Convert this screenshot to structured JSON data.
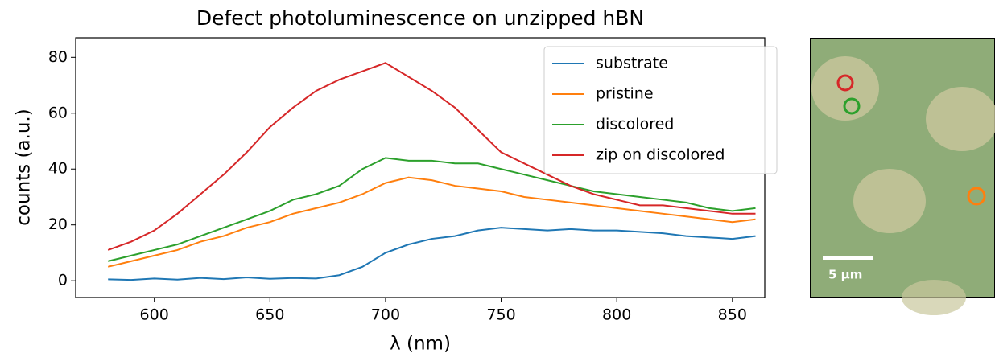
{
  "chart_data": {
    "type": "line",
    "title": "Defect photoluminescence on unzipped hBN",
    "x_label": "λ (nm)",
    "y_label": "counts (a.u.)",
    "x": [
      580,
      590,
      600,
      610,
      620,
      630,
      640,
      650,
      660,
      670,
      680,
      690,
      700,
      710,
      720,
      730,
      740,
      750,
      760,
      770,
      780,
      790,
      800,
      810,
      820,
      830,
      840,
      850,
      860
    ],
    "series": [
      {
        "name": "substrate",
        "color": "#1f77b4",
        "values": [
          0.5,
          0.3,
          0.8,
          0.4,
          1.0,
          0.6,
          1.2,
          0.7,
          1.0,
          0.8,
          2,
          5,
          10,
          13,
          15,
          16,
          18,
          19,
          18.5,
          18,
          18.5,
          18,
          18,
          17.5,
          17,
          16,
          15.5,
          15,
          16
        ]
      },
      {
        "name": "pristine",
        "color": "#ff7f0e",
        "values": [
          5,
          7,
          9,
          11,
          14,
          16,
          19,
          21,
          24,
          26,
          28,
          31,
          35,
          37,
          36,
          34,
          33,
          32,
          30,
          29,
          28,
          27,
          26,
          25,
          24,
          23,
          22,
          21,
          22
        ]
      },
      {
        "name": "discolored",
        "color": "#2ca02c",
        "values": [
          7,
          9,
          11,
          13,
          16,
          19,
          22,
          25,
          29,
          31,
          34,
          40,
          44,
          43,
          43,
          42,
          42,
          40,
          38,
          36,
          34,
          32,
          31,
          30,
          29,
          28,
          26,
          25,
          26
        ]
      },
      {
        "name": "zip on discolored",
        "color": "#d62728",
        "values": [
          11,
          14,
          18,
          24,
          31,
          38,
          46,
          55,
          62,
          68,
          72,
          75,
          78,
          73,
          68,
          62,
          54,
          46,
          42,
          38,
          34,
          31,
          29,
          27,
          27,
          26,
          25,
          24,
          24
        ]
      }
    ],
    "xlim": [
      566,
      864
    ],
    "ylim": [
      -6,
      87
    ],
    "xticks": [
      600,
      650,
      700,
      750,
      800,
      850
    ],
    "yticks": [
      0,
      20,
      40,
      60,
      80
    ],
    "grid": false,
    "legend": "upper right"
  },
  "inset": {
    "scale_bar_label": "5 µm"
  }
}
